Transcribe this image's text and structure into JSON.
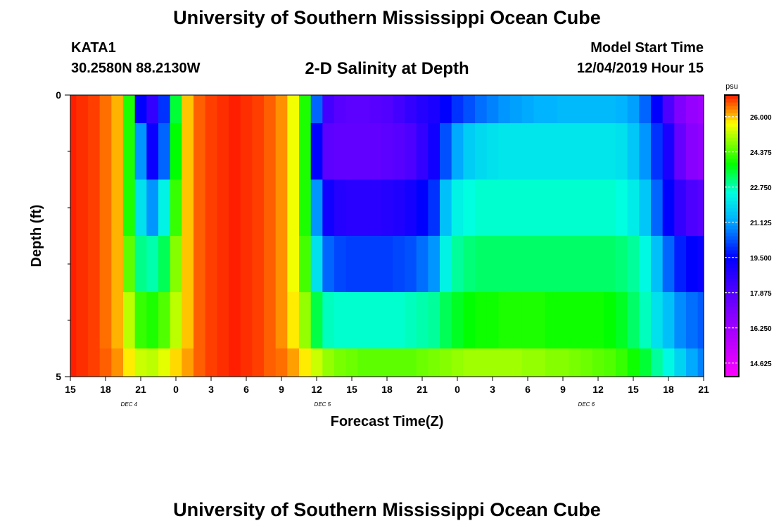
{
  "header": {
    "title": "University of Southern Mississippi Ocean Cube",
    "station_id": "KATA1",
    "station_coords": "30.2580N 88.2130W",
    "chart_title": "2-D Salinity at Depth",
    "model_start_label": "Model Start Time",
    "model_start_value": "12/04/2019 Hour 15"
  },
  "footer": {
    "title": "University of Southern Mississippi Ocean Cube"
  },
  "chart_data": {
    "type": "heatmap",
    "title": "2-D Salinity at Depth",
    "xlabel": "Forecast Time(Z)",
    "ylabel": "Depth (ft)",
    "x_start_hour": 15,
    "x_end_hour": 69,
    "x_step_hours": 1,
    "x_ticks": [
      "15",
      "18",
      "21",
      "0",
      "3",
      "6",
      "9",
      "12",
      "15",
      "18",
      "21",
      "0",
      "3",
      "6",
      "9",
      "12",
      "15",
      "18",
      "21"
    ],
    "x_tick_hours": [
      15,
      18,
      21,
      24,
      27,
      30,
      33,
      36,
      39,
      42,
      45,
      48,
      51,
      54,
      57,
      60,
      63,
      66,
      69
    ],
    "date_labels": [
      {
        "text": "DEC 4",
        "hour": 20
      },
      {
        "text": "DEC 5",
        "hour": 36.5
      },
      {
        "text": "DEC 6",
        "hour": 59
      }
    ],
    "y_ticks": [
      "0",
      "5"
    ],
    "ylim": [
      0,
      5
    ],
    "depth_layers": [
      {
        "top": 0.0,
        "bottom": 0.5
      },
      {
        "top": 0.5,
        "bottom": 1.5
      },
      {
        "top": 1.5,
        "bottom": 2.5
      },
      {
        "top": 2.5,
        "bottom": 3.5
      },
      {
        "top": 3.5,
        "bottom": 4.5
      },
      {
        "top": 4.5,
        "bottom": 5.0
      }
    ],
    "colorbar": {
      "unit": "psu",
      "min": 14.0,
      "max": 27.0,
      "tick_labels": [
        "26.000",
        "24.375",
        "22.750",
        "21.125",
        "19.500",
        "17.875",
        "16.250",
        "14.625"
      ],
      "tick_values": [
        26.0,
        24.375,
        22.75,
        21.125,
        19.5,
        17.875,
        16.25,
        14.625
      ],
      "stops": [
        {
          "v": 14.0,
          "color": "#ff00ff"
        },
        {
          "v": 17.0,
          "color": "#8000ff"
        },
        {
          "v": 19.5,
          "color": "#0000ff"
        },
        {
          "v": 21.3,
          "color": "#00b4ff"
        },
        {
          "v": 22.5,
          "color": "#00ffe0"
        },
        {
          "v": 23.8,
          "color": "#00ff00"
        },
        {
          "v": 25.0,
          "color": "#a0ff00"
        },
        {
          "v": 25.7,
          "color": "#ffff00"
        },
        {
          "v": 26.2,
          "color": "#ffa000"
        },
        {
          "v": 27.0,
          "color": "#ff1e00"
        }
      ]
    },
    "series": [
      {
        "values": [
          27.0,
          26.9,
          26.8,
          26.5,
          26.1,
          24.0,
          19.5,
          18.5,
          20.0,
          23.5,
          26.0,
          26.6,
          26.8,
          26.9,
          27.0,
          26.9,
          26.8,
          26.6,
          26.3,
          25.6,
          24.0,
          20.5,
          18.2,
          17.8,
          17.7,
          17.7,
          17.8,
          17.9,
          18.2,
          18.5,
          18.8,
          19.0,
          19.5,
          20.0,
          20.3,
          20.6,
          20.8,
          21.0,
          21.1,
          21.2,
          21.3,
          21.3,
          21.4,
          21.4,
          21.4,
          21.4,
          21.4,
          21.3,
          21.1,
          20.5,
          19.5,
          18.0,
          17.0,
          16.5,
          16.3
        ]
      },
      {
        "values": [
          27.0,
          26.9,
          26.8,
          26.5,
          26.1,
          24.0,
          21.0,
          19.3,
          20.5,
          23.8,
          26.0,
          26.6,
          26.8,
          26.9,
          27.0,
          26.9,
          26.8,
          26.6,
          26.3,
          25.6,
          24.0,
          19.5,
          17.7,
          17.6,
          17.6,
          17.6,
          17.6,
          17.7,
          17.8,
          18.0,
          18.5,
          19.2,
          20.3,
          21.2,
          21.7,
          21.9,
          22.0,
          22.1,
          22.1,
          22.1,
          22.1,
          22.1,
          22.1,
          22.1,
          22.1,
          22.1,
          22.1,
          22.0,
          21.6,
          21.0,
          20.0,
          19.0,
          17.5,
          16.8,
          16.6
        ]
      },
      {
        "values": [
          27.0,
          26.9,
          26.8,
          26.5,
          26.1,
          24.0,
          22.0,
          21.0,
          22.3,
          24.2,
          26.0,
          26.6,
          26.8,
          26.9,
          27.0,
          26.9,
          26.8,
          26.6,
          26.3,
          25.6,
          24.0,
          21.0,
          19.2,
          18.8,
          18.7,
          18.7,
          18.7,
          18.8,
          18.9,
          19.1,
          19.5,
          20.0,
          21.5,
          22.3,
          22.5,
          22.6,
          22.6,
          22.6,
          22.6,
          22.6,
          22.6,
          22.6,
          22.6,
          22.6,
          22.6,
          22.6,
          22.6,
          22.5,
          22.2,
          21.6,
          20.5,
          19.5,
          18.5,
          18.0,
          17.8
        ]
      },
      {
        "values": [
          27.0,
          26.9,
          26.8,
          26.5,
          26.1,
          24.5,
          23.0,
          22.8,
          23.3,
          24.8,
          26.0,
          26.6,
          26.8,
          26.9,
          27.0,
          26.9,
          26.8,
          26.6,
          26.3,
          25.6,
          24.3,
          22.0,
          20.5,
          20.2,
          20.1,
          20.1,
          20.1,
          20.1,
          20.2,
          20.3,
          20.6,
          21.0,
          22.3,
          22.9,
          23.1,
          23.2,
          23.2,
          23.2,
          23.2,
          23.2,
          23.2,
          23.2,
          23.2,
          23.2,
          23.2,
          23.2,
          23.2,
          23.1,
          22.9,
          22.4,
          21.5,
          20.5,
          19.8,
          19.5,
          19.3
        ]
      },
      {
        "values": [
          27.0,
          26.9,
          26.8,
          26.5,
          26.1,
          25.2,
          24.2,
          24.0,
          24.4,
          25.2,
          26.0,
          26.6,
          26.8,
          26.9,
          27.0,
          26.9,
          26.8,
          26.6,
          26.3,
          25.8,
          24.9,
          23.4,
          22.7,
          22.6,
          22.6,
          22.6,
          22.6,
          22.6,
          22.6,
          22.7,
          22.8,
          22.9,
          23.3,
          23.6,
          23.8,
          23.9,
          23.9,
          24.0,
          24.0,
          24.0,
          24.0,
          23.9,
          23.9,
          23.9,
          23.9,
          23.9,
          23.8,
          23.6,
          23.2,
          22.7,
          22.0,
          21.5,
          20.9,
          20.6,
          20.4
        ]
      },
      {
        "values": [
          27.0,
          26.9,
          26.8,
          26.6,
          26.3,
          25.8,
          25.3,
          25.2,
          25.5,
          25.9,
          26.2,
          26.6,
          26.8,
          26.9,
          27.0,
          26.9,
          26.8,
          26.6,
          26.5,
          26.2,
          25.8,
          25.3,
          24.9,
          24.7,
          24.6,
          24.5,
          24.5,
          24.5,
          24.5,
          24.5,
          24.6,
          24.7,
          24.8,
          24.9,
          25.0,
          25.0,
          25.0,
          25.0,
          25.0,
          24.9,
          24.9,
          24.8,
          24.8,
          24.7,
          24.6,
          24.5,
          24.4,
          24.2,
          23.9,
          23.5,
          22.9,
          22.4,
          21.8,
          21.2,
          20.8
        ]
      }
    ]
  }
}
